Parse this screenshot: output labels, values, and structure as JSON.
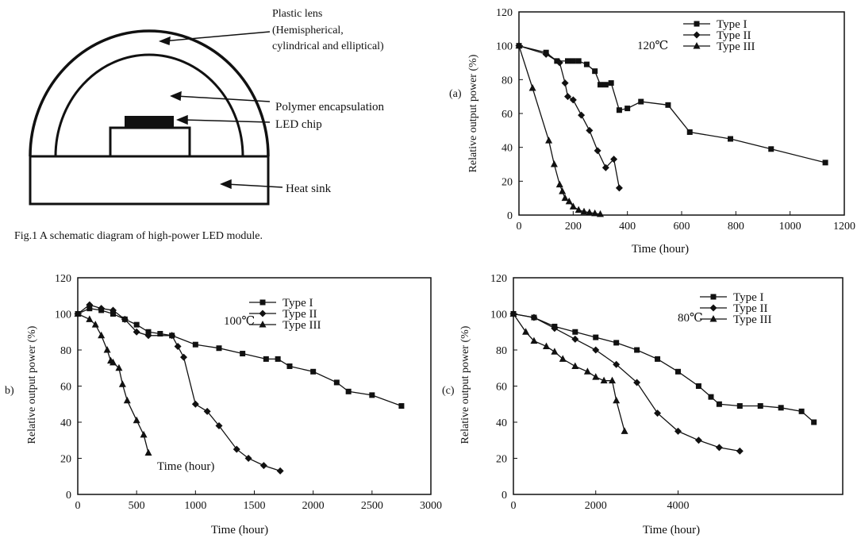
{
  "schematic": {
    "labels": {
      "lens": "Plastic lens",
      "lens_sub1": "(Hemispherical,",
      "lens_sub2": "cylindrical and elliptical)",
      "encap": "Polymer encapsulation",
      "chip": "LED chip",
      "sink": "Heat sink"
    },
    "caption": "Fig.1 A schematic diagram of high-power LED module."
  },
  "chart_data": [
    {
      "id": "a",
      "type": "line",
      "panel_label": "(a)",
      "annotation": "120℃",
      "xlabel": "Time (hour)",
      "ylabel": "Relative output power (%)",
      "xlim": [
        0,
        1200
      ],
      "ylim": [
        0,
        120
      ],
      "xticks": [
        0,
        200,
        400,
        600,
        800,
        1000,
        1200
      ],
      "yticks": [
        0,
        20,
        40,
        60,
        80,
        100,
        120
      ],
      "legend": [
        "Type I",
        "Type II",
        "Type III"
      ],
      "legend_position": "top-right",
      "series": [
        {
          "name": "Type I",
          "marker": "square",
          "x": [
            0,
            100,
            140,
            180,
            200,
            220,
            250,
            280,
            300,
            320,
            340,
            370,
            400,
            450,
            550,
            630,
            780,
            930,
            1130
          ],
          "y": [
            100,
            96,
            91,
            91,
            91,
            91,
            89,
            85,
            77,
            77,
            78,
            62,
            63,
            67,
            65,
            49,
            45,
            39,
            31
          ]
        },
        {
          "name": "Type II",
          "marker": "diamond",
          "x": [
            0,
            100,
            150,
            170,
            180,
            200,
            230,
            260,
            290,
            320,
            350,
            370
          ],
          "y": [
            100,
            95,
            90,
            78,
            70,
            68,
            59,
            50,
            38,
            28,
            33,
            16
          ]
        },
        {
          "name": "Type III",
          "marker": "triangle",
          "x": [
            0,
            50,
            110,
            130,
            150,
            160,
            170,
            185,
            200,
            220,
            240,
            260,
            280,
            300
          ],
          "y": [
            100,
            75,
            44,
            30,
            18,
            14,
            10,
            8,
            5,
            3,
            2,
            1.5,
            1,
            0.5
          ]
        }
      ]
    },
    {
      "id": "b",
      "type": "line",
      "panel_label": "b)",
      "annotation": "100℃",
      "xlabel": "Time (hour)",
      "inner_label": "Time (hour)",
      "ylabel": "Relative output power (%)",
      "xlim": [
        0,
        3000
      ],
      "ylim": [
        0,
        120
      ],
      "xticks": [
        0,
        500,
        1000,
        1500,
        2000,
        2500,
        3000
      ],
      "yticks": [
        0,
        20,
        40,
        60,
        80,
        100,
        120
      ],
      "legend": [
        "Type I",
        "Type II",
        "Type III"
      ],
      "legend_position": "top-right",
      "series": [
        {
          "name": "Type I",
          "marker": "square",
          "x": [
            0,
            100,
            200,
            300,
            400,
            500,
            600,
            700,
            800,
            1000,
            1200,
            1400,
            1600,
            1700,
            1800,
            2000,
            2200,
            2300,
            2500,
            2750
          ],
          "y": [
            100,
            103,
            102,
            100,
            97,
            94,
            90,
            89,
            88,
            83,
            81,
            78,
            75,
            75,
            71,
            68,
            62,
            57,
            55,
            49
          ]
        },
        {
          "name": "Type II",
          "marker": "diamond",
          "x": [
            0,
            100,
            200,
            300,
            400,
            500,
            600,
            800,
            850,
            900,
            1000,
            1100,
            1200,
            1350,
            1450,
            1580,
            1720
          ],
          "y": [
            100,
            105,
            103,
            102,
            97,
            90,
            88,
            88,
            82,
            76,
            50,
            46,
            38,
            25,
            20,
            16,
            13
          ]
        },
        {
          "name": "Type III",
          "marker": "triangle",
          "x": [
            0,
            100,
            150,
            200,
            250,
            280,
            300,
            350,
            380,
            420,
            500,
            560,
            600
          ],
          "y": [
            100,
            97,
            94,
            88,
            80,
            74,
            73,
            70,
            61,
            52,
            41,
            33,
            23
          ]
        }
      ]
    },
    {
      "id": "c",
      "type": "line",
      "panel_label": "(c)",
      "annotation": "80℃",
      "xlabel": "Time (hour)",
      "ylabel": "Relative output power (%)",
      "xlim": [
        0,
        8000
      ],
      "ylim": [
        0,
        120
      ],
      "xticks": [
        0,
        2000,
        4000
      ],
      "yticks": [
        0,
        20,
        40,
        60,
        80,
        100,
        120
      ],
      "legend": [
        "Type I",
        "Type II",
        "Type III"
      ],
      "legend_position": "top-right",
      "series": [
        {
          "name": "Type I",
          "marker": "square",
          "x": [
            0,
            500,
            1000,
            1500,
            2000,
            2500,
            3000,
            3500,
            4000,
            4500,
            4800,
            5000,
            5500,
            6000,
            6500,
            7000,
            7300
          ],
          "y": [
            100,
            98,
            93,
            90,
            87,
            84,
            80,
            75,
            68,
            60,
            54,
            50,
            49,
            49,
            48,
            46,
            40
          ]
        },
        {
          "name": "Type II",
          "marker": "diamond",
          "x": [
            0,
            500,
            1000,
            1500,
            2000,
            2500,
            3000,
            3500,
            4000,
            4500,
            5000,
            5500
          ],
          "y": [
            100,
            98,
            92,
            86,
            80,
            72,
            62,
            45,
            35,
            30,
            26,
            24
          ]
        },
        {
          "name": "Type III",
          "marker": "triangle",
          "x": [
            0,
            300,
            500,
            800,
            1000,
            1200,
            1500,
            1800,
            2000,
            2200,
            2400,
            2500,
            2700
          ],
          "y": [
            100,
            90,
            85,
            82,
            79,
            75,
            71,
            68,
            65,
            63,
            63,
            52,
            35
          ]
        }
      ]
    }
  ]
}
